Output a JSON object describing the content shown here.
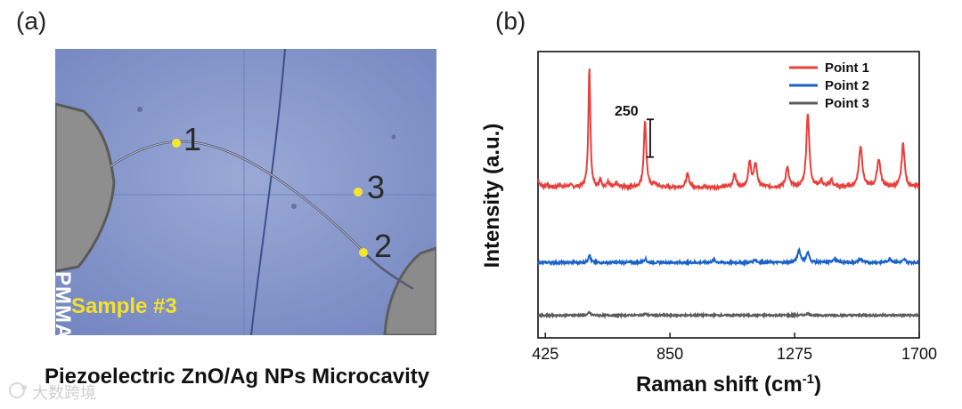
{
  "panel_a": {
    "label": "(a)",
    "pmma_label": "PMMA",
    "sample_label": "Sample #3",
    "points": [
      "1",
      "2",
      "3"
    ],
    "caption": "Piezoelectric ZnO/Ag NPs Microcavity",
    "point_color": "#f3e62e"
  },
  "watermark": "大数跨境",
  "chart_data": {
    "type": "line",
    "panel_label": "(b)",
    "xlabel": "Raman shift (cm",
    "xlabel_sup": "-1",
    "xlabel_end": ")",
    "ylabel": "Intensity (a.u.)",
    "xlim": [
      400,
      1700
    ],
    "x_ticks": [
      425,
      850,
      1275,
      1700
    ],
    "x_tick_labels": [
      "425",
      "850",
      "1275",
      "1700"
    ],
    "scale_bar_label": "250",
    "scale_bar_value": 250,
    "legend": [
      "Point 1",
      "Point 2",
      "Point 3"
    ],
    "legend_position": "top-right",
    "series": [
      {
        "name": "Point 1",
        "color": "#e8403d",
        "baseline": 1000,
        "noise": 22,
        "peaks": [
          [
            400,
            50,
            5
          ],
          [
            430,
            18,
            6
          ],
          [
            475,
            14,
            6
          ],
          [
            508,
            14,
            6
          ],
          [
            575,
            790,
            4
          ],
          [
            612,
            40,
            5
          ],
          [
            638,
            30,
            5
          ],
          [
            668,
            22,
            5
          ],
          [
            765,
            445,
            5
          ],
          [
            798,
            25,
            6
          ],
          [
            910,
            85,
            6
          ],
          [
            1070,
            85,
            6
          ],
          [
            1122,
            160,
            6
          ],
          [
            1142,
            155,
            6
          ],
          [
            1250,
            130,
            6
          ],
          [
            1320,
            490,
            6
          ],
          [
            1365,
            40,
            6
          ],
          [
            1400,
            45,
            6
          ],
          [
            1500,
            270,
            7
          ],
          [
            1562,
            185,
            7
          ],
          [
            1645,
            290,
            6
          ]
        ]
      },
      {
        "name": "Point 2",
        "color": "#1a62c7",
        "baseline": 500,
        "noise": 16,
        "peaks": [
          [
            575,
            55,
            4
          ],
          [
            765,
            25,
            5
          ],
          [
            1000,
            18,
            6
          ],
          [
            1140,
            20,
            6
          ],
          [
            1290,
            85,
            6
          ],
          [
            1320,
            65,
            6
          ],
          [
            1410,
            25,
            7
          ],
          [
            1500,
            22,
            7
          ],
          [
            1600,
            25,
            7
          ],
          [
            1650,
            20,
            6
          ]
        ]
      },
      {
        "name": "Point 3",
        "color": "#5a5a5a",
        "baseline": 150,
        "noise": 12,
        "peaks": [
          [
            575,
            20,
            4
          ],
          [
            765,
            10,
            5
          ],
          [
            1320,
            12,
            6
          ]
        ]
      }
    ]
  }
}
